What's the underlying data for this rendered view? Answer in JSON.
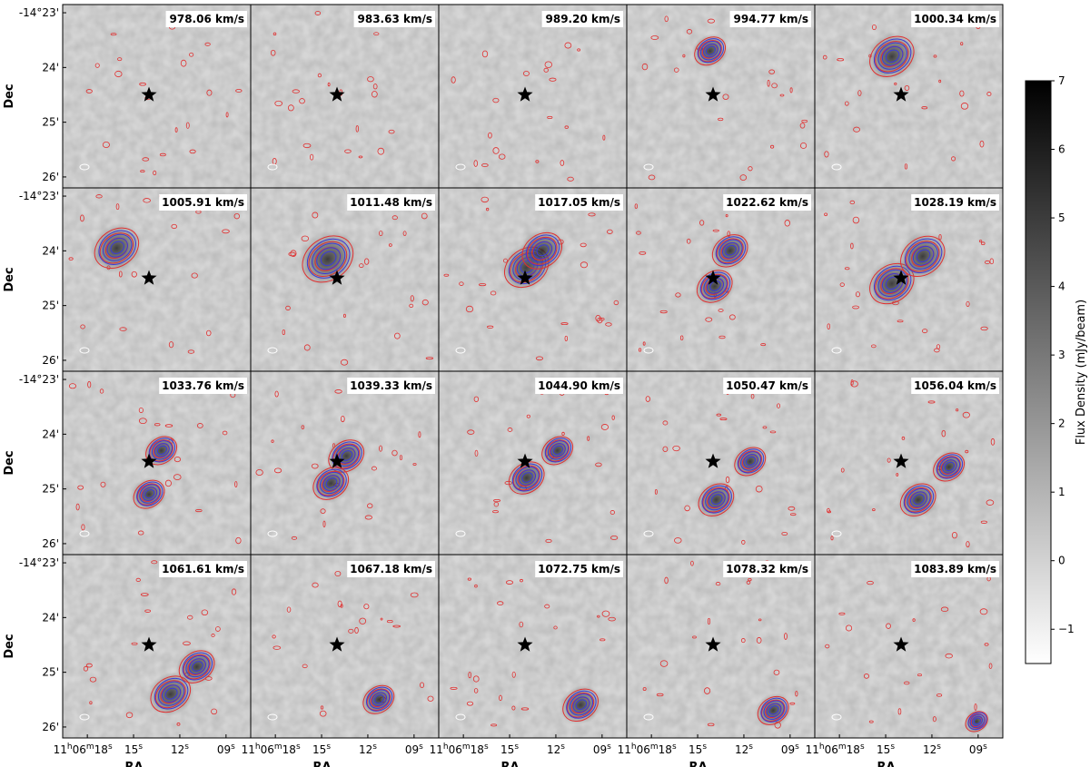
{
  "chart_data": {
    "type": "heatmap",
    "title": "",
    "layout": {
      "rows": 4,
      "cols": 5
    },
    "xlabel": "RA",
    "ylabel": "Dec",
    "x_ticks": [
      "11h06m18s",
      "15s",
      "12s",
      "09s"
    ],
    "y_ticks": [
      "-14°23'",
      "24'",
      "25'",
      "26'"
    ],
    "panels": [
      {
        "velocity": "978.06 km/s",
        "blobs": []
      },
      {
        "velocity": "983.63 km/s",
        "blobs": []
      },
      {
        "velocity": "989.20 km/s",
        "blobs": []
      },
      {
        "velocity": "994.77 km/s",
        "blobs": [
          {
            "ra_s": 14.2,
            "dec_min": 23.7,
            "size": 0.7
          }
        ]
      },
      {
        "velocity": "1000.34 km/s",
        "blobs": [
          {
            "ra_s": 14.6,
            "dec_min": 23.8,
            "size": 1.0
          }
        ]
      },
      {
        "velocity": "1005.91 km/s",
        "blobs": [
          {
            "ra_s": 16.1,
            "dec_min": 23.95,
            "size": 1.0
          }
        ]
      },
      {
        "velocity": "1011.48 km/s",
        "blobs": [
          {
            "ra_s": 14.6,
            "dec_min": 24.15,
            "size": 1.15
          }
        ]
      },
      {
        "velocity": "1017.05 km/s",
        "blobs": [
          {
            "ra_s": 13.9,
            "dec_min": 24.3,
            "size": 1.0
          },
          {
            "ra_s": 12.9,
            "dec_min": 24.0,
            "size": 0.9
          }
        ]
      },
      {
        "velocity": "1022.62 km/s",
        "blobs": [
          {
            "ra_s": 13.9,
            "dec_min": 24.65,
            "size": 0.8
          },
          {
            "ra_s": 12.9,
            "dec_min": 24.0,
            "size": 0.8
          }
        ]
      },
      {
        "velocity": "1028.19 km/s",
        "blobs": [
          {
            "ra_s": 14.6,
            "dec_min": 24.6,
            "size": 1.0
          },
          {
            "ra_s": 12.6,
            "dec_min": 24.1,
            "size": 1.0
          }
        ]
      },
      {
        "velocity": "1033.76 km/s",
        "blobs": [
          {
            "ra_s": 13.2,
            "dec_min": 24.3,
            "size": 0.7
          },
          {
            "ra_s": 14.0,
            "dec_min": 25.1,
            "size": 0.7
          }
        ]
      },
      {
        "velocity": "1039.33 km/s",
        "blobs": [
          {
            "ra_s": 13.4,
            "dec_min": 24.4,
            "size": 0.8
          },
          {
            "ra_s": 14.4,
            "dec_min": 24.9,
            "size": 0.8
          }
        ]
      },
      {
        "velocity": "1044.90 km/s",
        "blobs": [
          {
            "ra_s": 13.9,
            "dec_min": 24.8,
            "size": 0.8
          },
          {
            "ra_s": 11.9,
            "dec_min": 24.3,
            "size": 0.7
          }
        ]
      },
      {
        "velocity": "1050.47 km/s",
        "blobs": [
          {
            "ra_s": 13.8,
            "dec_min": 25.2,
            "size": 0.8
          },
          {
            "ra_s": 11.6,
            "dec_min": 24.5,
            "size": 0.7
          }
        ]
      },
      {
        "velocity": "1056.04 km/s",
        "blobs": [
          {
            "ra_s": 12.9,
            "dec_min": 25.2,
            "size": 0.8
          },
          {
            "ra_s": 10.9,
            "dec_min": 24.6,
            "size": 0.7
          }
        ]
      },
      {
        "velocity": "1061.61 km/s",
        "blobs": [
          {
            "ra_s": 12.6,
            "dec_min": 25.4,
            "size": 0.9
          },
          {
            "ra_s": 10.9,
            "dec_min": 24.9,
            "size": 0.8
          }
        ]
      },
      {
        "velocity": "1067.18 km/s",
        "blobs": [
          {
            "ra_s": 11.3,
            "dec_min": 25.5,
            "size": 0.7
          }
        ]
      },
      {
        "velocity": "1072.75 km/s",
        "blobs": [
          {
            "ra_s": 10.4,
            "dec_min": 25.6,
            "size": 0.8
          }
        ]
      },
      {
        "velocity": "1078.32 km/s",
        "blobs": [
          {
            "ra_s": 10.1,
            "dec_min": 25.7,
            "size": 0.7
          }
        ]
      },
      {
        "velocity": "1083.89 km/s",
        "blobs": [
          {
            "ra_s": 9.1,
            "dec_min": 25.9,
            "size": 0.5
          }
        ]
      }
    ],
    "marker": {
      "shape": "star",
      "ra_s": 14.0,
      "dec_min": 24.5
    },
    "ra_range": [
      19.6,
      7.4
    ],
    "dec_range": [
      22.85,
      26.2
    ],
    "colorbar": {
      "label": "Flux Density (mJy/beam)",
      "min": -1.5,
      "max": 7,
      "ticks": [
        "7",
        "6",
        "5",
        "4",
        "3",
        "2",
        "1",
        "0",
        "−1"
      ],
      "tick_values": [
        7,
        6,
        5,
        4,
        3,
        2,
        1,
        0,
        -1
      ],
      "colormap": [
        "#ffffff",
        "#000000"
      ]
    },
    "contour_colors": {
      "red": "#e03030",
      "blue": "#3a3ad8"
    }
  }
}
